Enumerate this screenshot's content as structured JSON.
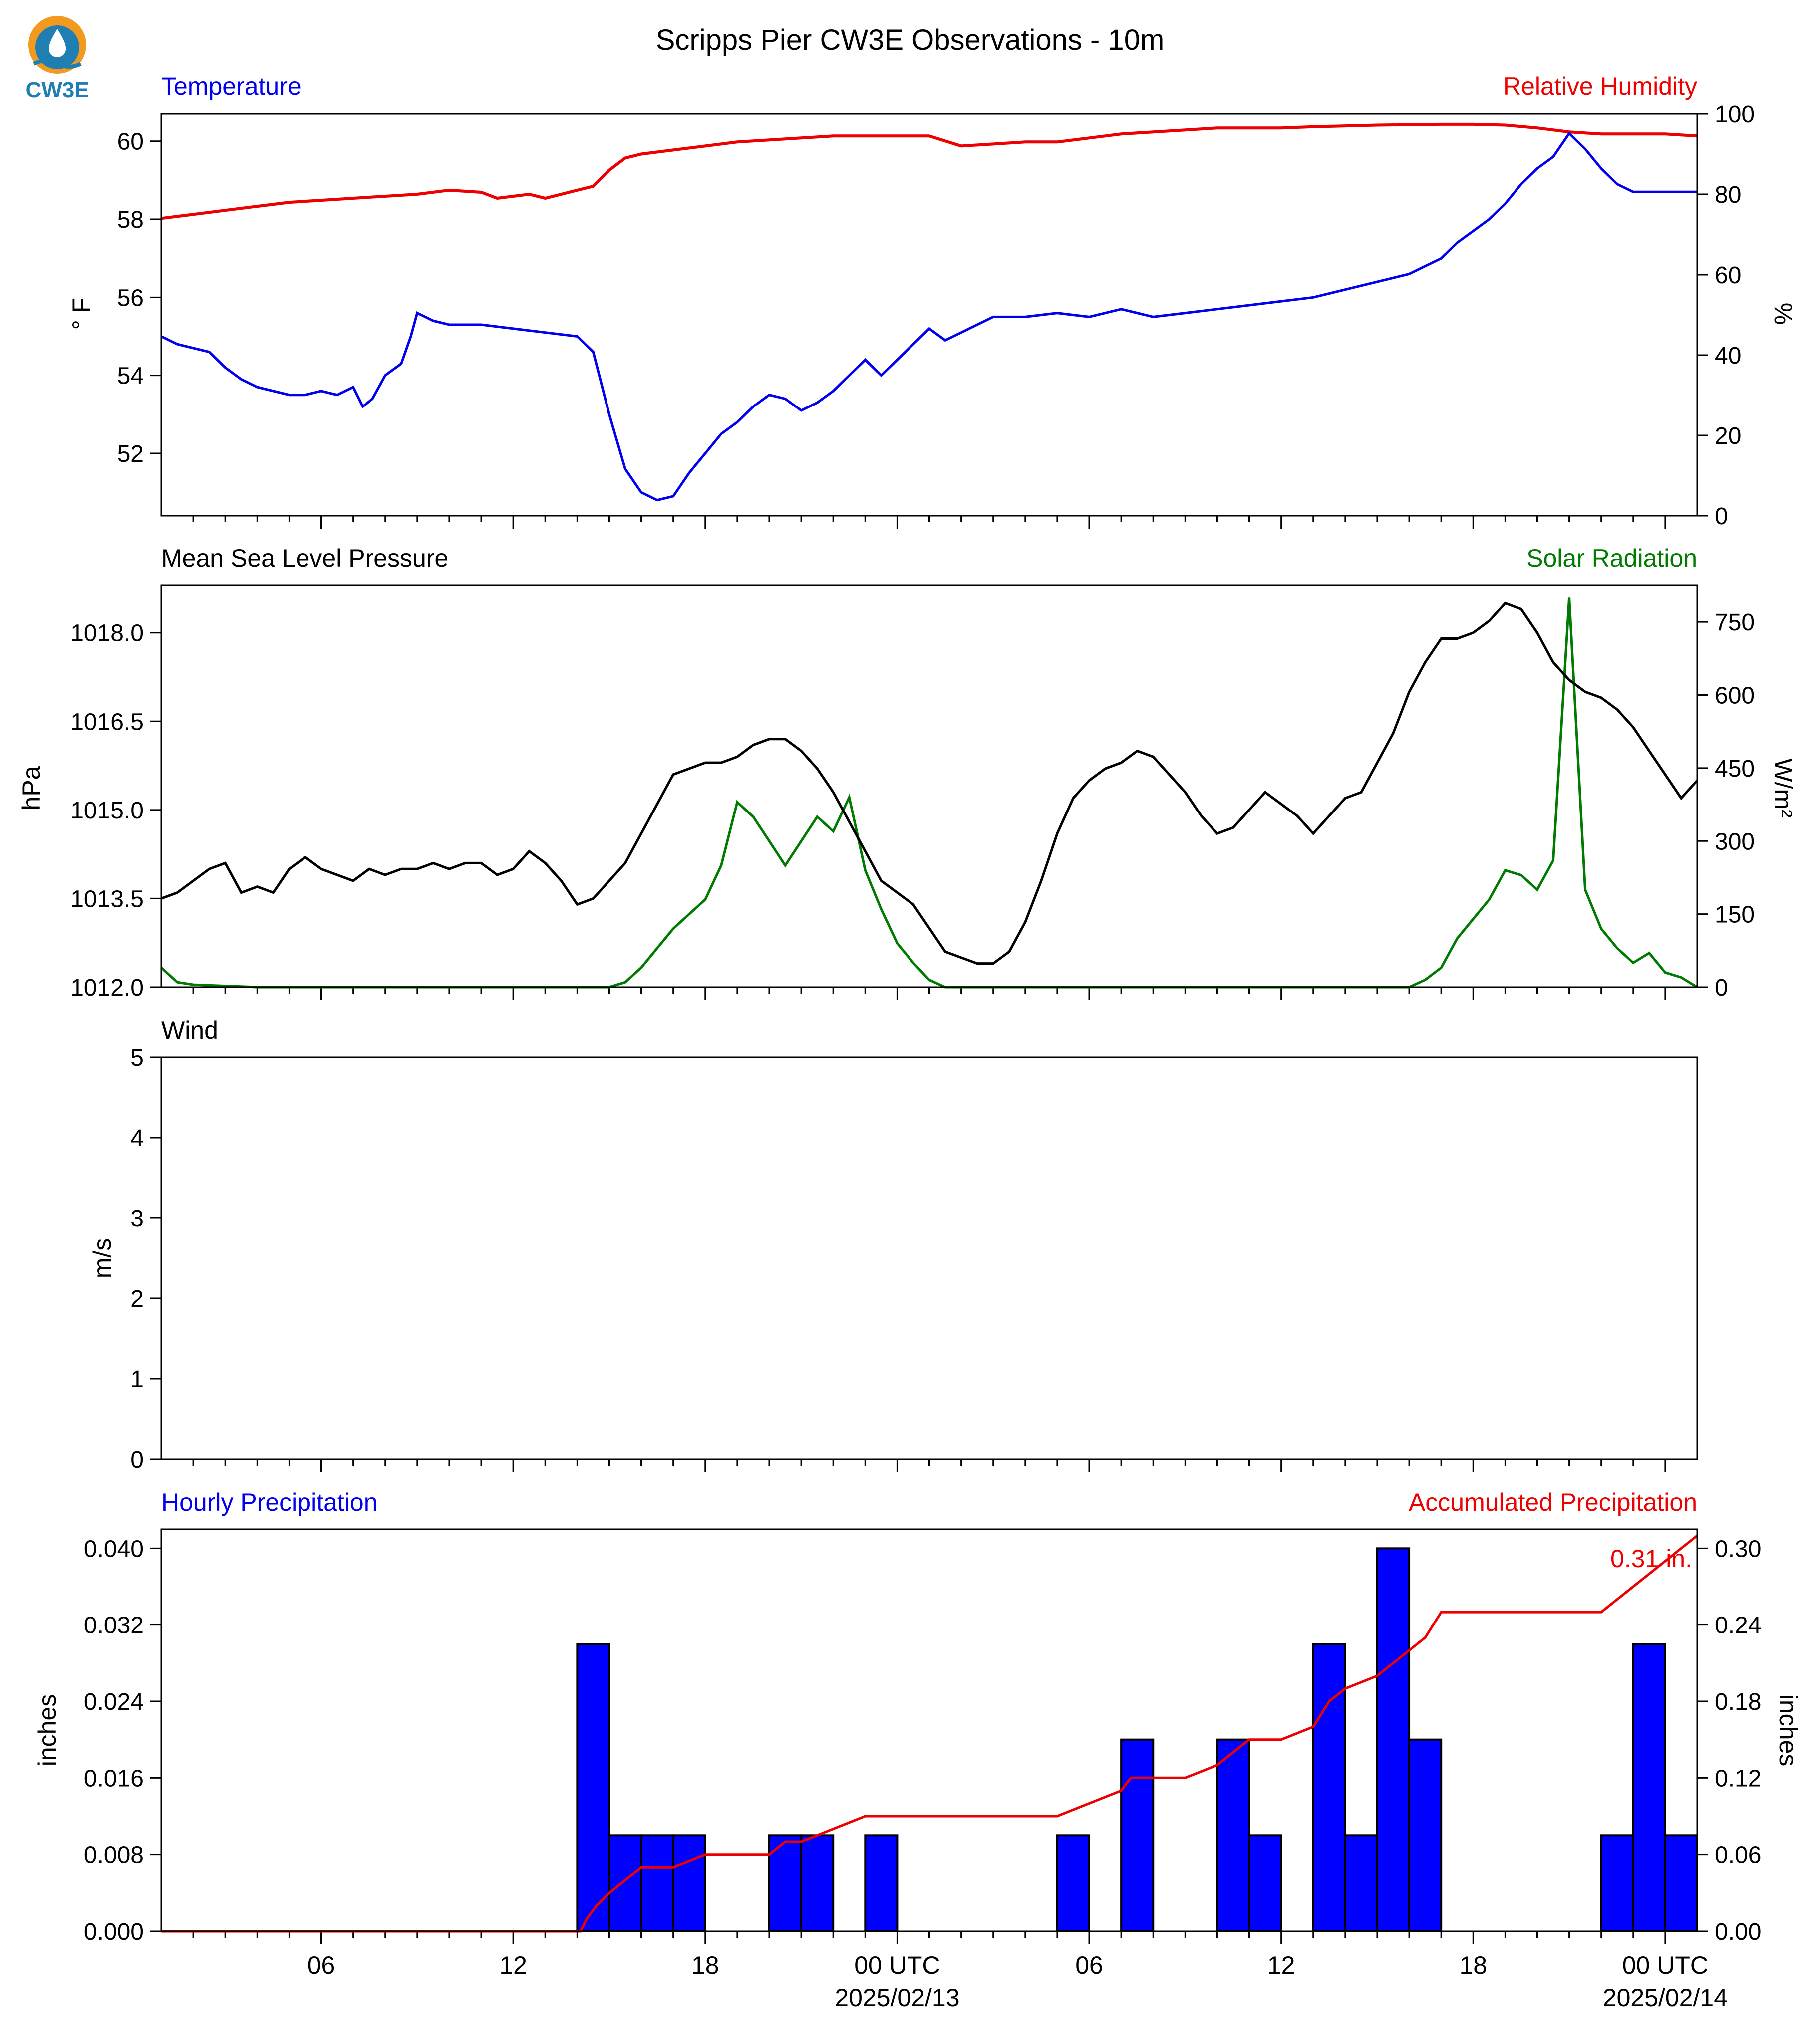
{
  "title": "Scripps Pier CW3E Observations - 10m",
  "logo_text": "CW3E",
  "time_axis": {
    "tick_labels": [
      "06",
      "12",
      "18",
      "00 UTC",
      "06",
      "12",
      "18",
      "00 UTC"
    ],
    "tick_hours": [
      6,
      12,
      18,
      24,
      30,
      36,
      42,
      48
    ],
    "date_labels": [
      "2025/02/13",
      "2025/02/14"
    ],
    "date_hours": [
      24,
      48
    ],
    "range_hours": [
      1,
      49
    ]
  },
  "chart_data": [
    {
      "type": "line",
      "title_left": "Temperature",
      "title_right": "Relative Humidity",
      "ylabel_left": "° F",
      "ylabel_right": "%",
      "ylim_left": [
        50.4,
        60.7
      ],
      "ylim_right": [
        0,
        100
      ],
      "yticks_left": [
        52,
        54,
        56,
        58,
        60
      ],
      "yticks_right": [
        0,
        20,
        40,
        60,
        80,
        100
      ],
      "colors": {
        "left": "#0000ee",
        "right": "#ee0000"
      },
      "series": [
        {
          "name": "Temperature",
          "axis": "left",
          "x": [
            1,
            1.5,
            2,
            2.5,
            3,
            3.5,
            4,
            4.5,
            5,
            5.5,
            6,
            6.5,
            7,
            7.3,
            7.6,
            8,
            8.5,
            8.8,
            9,
            9.5,
            10,
            11,
            12,
            13,
            14,
            14.5,
            15,
            15.5,
            16,
            16.5,
            17,
            17.5,
            18,
            18.5,
            19,
            19.5,
            20,
            20.5,
            21,
            21.5,
            22,
            22.5,
            23,
            23.5,
            24,
            24.5,
            25,
            25.5,
            26,
            26.5,
            27,
            28,
            29,
            30,
            31,
            32,
            33,
            34,
            35,
            36,
            37,
            38,
            39,
            40,
            40.5,
            41,
            41.5,
            42,
            42.5,
            43,
            43.5,
            44,
            44.5,
            45,
            45.5,
            46,
            46.5,
            47,
            47.5,
            48,
            49
          ],
          "y": [
            55.0,
            54.8,
            54.7,
            54.6,
            54.2,
            53.9,
            53.7,
            53.6,
            53.5,
            53.5,
            53.6,
            53.5,
            53.7,
            53.2,
            53.4,
            54.0,
            54.3,
            55.0,
            55.6,
            55.4,
            55.3,
            55.3,
            55.2,
            55.1,
            55.0,
            54.6,
            53.0,
            51.6,
            51.0,
            50.8,
            50.9,
            51.5,
            52.0,
            52.5,
            52.8,
            53.2,
            53.5,
            53.4,
            53.1,
            53.3,
            53.6,
            54.0,
            54.4,
            54.0,
            54.4,
            54.8,
            55.2,
            54.9,
            55.1,
            55.3,
            55.5,
            55.5,
            55.6,
            55.5,
            55.7,
            55.5,
            55.6,
            55.7,
            55.8,
            55.9,
            56.0,
            56.2,
            56.4,
            56.6,
            56.8,
            57.0,
            57.4,
            57.7,
            58.0,
            58.4,
            58.9,
            59.3,
            59.6,
            60.2,
            59.8,
            59.3,
            58.9,
            58.7,
            58.7,
            58.7,
            58.7
          ]
        },
        {
          "name": "Relative Humidity",
          "axis": "right",
          "x": [
            1,
            2,
            3,
            4,
            5,
            6,
            7,
            8,
            9,
            10,
            11,
            11.5,
            12,
            12.5,
            13,
            13.5,
            14,
            14.5,
            15,
            15.5,
            16,
            17,
            18,
            19,
            20,
            21,
            22,
            23,
            24,
            25,
            26,
            27,
            28,
            29,
            30,
            31,
            32,
            33,
            34,
            35,
            36,
            37,
            38,
            39,
            40,
            41,
            42,
            43,
            44,
            45,
            46,
            47,
            48,
            49
          ],
          "y": [
            74,
            75,
            76,
            77,
            78,
            78.5,
            79,
            79.5,
            80,
            81,
            80.5,
            79,
            79.5,
            80,
            79,
            80,
            81,
            82,
            86,
            89,
            90,
            91,
            92,
            93,
            93.5,
            94,
            94.5,
            94.5,
            94.5,
            94.5,
            92,
            92.5,
            93,
            93,
            94,
            95,
            95.5,
            96,
            96.5,
            96.5,
            96.5,
            96.8,
            97,
            97.2,
            97.3,
            97.4,
            97.4,
            97.2,
            96.5,
            95.5,
            95,
            95,
            95,
            94.5
          ]
        }
      ]
    },
    {
      "type": "line",
      "title_left": "Mean Sea Level Pressure",
      "title_right": "Solar Radiation",
      "ylabel_left": "hPa",
      "ylabel_right": "W/m²",
      "ylim_left": [
        1012.0,
        1018.8
      ],
      "ylim_right": [
        0,
        825
      ],
      "yticks_left": [
        1012.0,
        1013.5,
        1015.0,
        1016.5,
        1018.0
      ],
      "yticks_left_labels": [
        "1012.0",
        "1013.5",
        "1015.0",
        "1016.5",
        "1018.0"
      ],
      "yticks_right": [
        0,
        150,
        300,
        450,
        600,
        750
      ],
      "colors": {
        "left": "#000000",
        "right": "#007a00"
      },
      "series": [
        {
          "name": "Mean Sea Level Pressure",
          "axis": "left",
          "x": [
            1,
            1.5,
            2,
            2.5,
            3,
            3.5,
            4,
            4.5,
            5,
            5.5,
            6,
            6.5,
            7,
            7.5,
            8,
            8.5,
            9,
            9.5,
            10,
            10.5,
            11,
            11.5,
            12,
            12.5,
            13,
            13.5,
            14,
            14.5,
            15,
            15.5,
            16,
            16.5,
            17,
            17.5,
            18,
            18.5,
            19,
            19.5,
            20,
            20.5,
            21,
            21.5,
            22,
            22.5,
            23,
            23.5,
            24,
            24.5,
            25,
            25.5,
            26,
            26.5,
            27,
            27.5,
            28,
            28.5,
            29,
            29.5,
            30,
            30.5,
            31,
            31.5,
            32,
            32.5,
            33,
            33.5,
            34,
            34.5,
            35,
            35.5,
            36,
            36.5,
            37,
            37.5,
            38,
            38.5,
            39,
            39.5,
            40,
            40.5,
            41,
            41.5,
            42,
            42.5,
            43,
            43.5,
            44,
            44.5,
            45,
            45.5,
            46,
            46.5,
            47,
            47.5,
            48,
            48.5,
            49
          ],
          "y": [
            1013.5,
            1013.6,
            1013.8,
            1014.0,
            1014.1,
            1013.6,
            1013.7,
            1013.6,
            1014.0,
            1014.2,
            1014.0,
            1013.9,
            1013.8,
            1014.0,
            1013.9,
            1014.0,
            1014.0,
            1014.1,
            1014.0,
            1014.1,
            1014.1,
            1013.9,
            1014.0,
            1014.3,
            1014.1,
            1013.8,
            1013.4,
            1013.5,
            1013.8,
            1014.1,
            1014.6,
            1015.1,
            1015.6,
            1015.7,
            1015.8,
            1015.8,
            1015.9,
            1016.1,
            1016.2,
            1016.2,
            1016.0,
            1015.7,
            1015.3,
            1014.8,
            1014.3,
            1013.8,
            1013.6,
            1013.4,
            1013.0,
            1012.6,
            1012.5,
            1012.4,
            1012.4,
            1012.6,
            1013.1,
            1013.8,
            1014.6,
            1015.2,
            1015.5,
            1015.7,
            1015.8,
            1016.0,
            1015.9,
            1015.6,
            1015.3,
            1014.9,
            1014.6,
            1014.7,
            1015.0,
            1015.3,
            1015.1,
            1014.9,
            1014.6,
            1014.9,
            1015.2,
            1015.3,
            1015.8,
            1016.3,
            1017.0,
            1017.5,
            1017.9,
            1017.9,
            1018.0,
            1018.2,
            1018.5,
            1018.4,
            1018.0,
            1017.5,
            1017.2,
            1017.0,
            1016.9,
            1016.7,
            1016.4,
            1016.0,
            1015.6,
            1015.2,
            1015.5
          ]
        },
        {
          "name": "Solar Radiation",
          "axis": "right",
          "x": [
            1,
            1.5,
            2,
            4,
            8,
            12,
            14,
            15,
            15.5,
            16,
            16.5,
            17,
            17.5,
            18,
            18.5,
            19,
            19.5,
            20,
            20.5,
            21,
            21.5,
            22,
            22.5,
            23,
            23.5,
            24,
            24.5,
            25,
            25.5,
            26,
            30,
            34,
            38,
            40,
            40.5,
            41,
            41.5,
            42,
            42.5,
            43,
            43.5,
            44,
            44.5,
            45,
            45.5,
            46,
            46.5,
            47,
            47.5,
            48,
            48.5,
            49
          ],
          "y": [
            40,
            10,
            5,
            0,
            0,
            0,
            0,
            0,
            10,
            40,
            80,
            120,
            150,
            180,
            250,
            380,
            350,
            300,
            250,
            300,
            350,
            320,
            390,
            240,
            160,
            90,
            50,
            15,
            0,
            0,
            0,
            0,
            0,
            0,
            15,
            40,
            100,
            140,
            180,
            240,
            230,
            200,
            260,
            800,
            200,
            120,
            80,
            50,
            70,
            30,
            20,
            0
          ]
        }
      ]
    },
    {
      "type": "line",
      "title_left": "Wind",
      "ylabel_left": "m/s",
      "ylim_left": [
        0,
        5
      ],
      "yticks_left": [
        0,
        1,
        2,
        3,
        4,
        5
      ],
      "series": []
    },
    {
      "type": "bar",
      "title_left": "Hourly Precipitation",
      "title_right": "Accumulated Precipitation",
      "ylabel_left": "inches",
      "ylabel_right": "inches",
      "ylim_left": [
        0,
        0.042
      ],
      "ylim_right": [
        0,
        0.315
      ],
      "yticks_left": [
        0.0,
        0.008,
        0.016,
        0.024,
        0.032,
        0.04
      ],
      "yticks_left_labels": [
        "0.000",
        "0.008",
        "0.016",
        "0.024",
        "0.032",
        "0.040"
      ],
      "yticks_right": [
        0,
        0.06,
        0.12,
        0.18,
        0.24,
        0.3
      ],
      "yticks_right_labels": [
        "0.00",
        "0.06",
        "0.12",
        "0.18",
        "0.24",
        "0.30"
      ],
      "colors": {
        "bars": "#0000ff",
        "line": "#ee0000"
      },
      "annotation": "0.31 in.",
      "series": [
        {
          "name": "Hourly Precipitation",
          "axis": "left",
          "hours": [
            14,
            15,
            16,
            17,
            20,
            21,
            23,
            29,
            31,
            34,
            35,
            37,
            38,
            39,
            40,
            46,
            47,
            48
          ],
          "values": [
            0.03,
            0.01,
            0.01,
            0.01,
            0.01,
            0.01,
            0.01,
            0.01,
            0.02,
            0.02,
            0.01,
            0.03,
            0.01,
            0.04,
            0.02,
            0.01,
            0.03,
            0.01
          ]
        },
        {
          "name": "Accumulated Precipitation",
          "axis": "right",
          "x": [
            1,
            14.1,
            14.3,
            14.6,
            15,
            15.5,
            16,
            17,
            18,
            20,
            20.5,
            21,
            22,
            23,
            29,
            30,
            31,
            31.3,
            31.5,
            33,
            34,
            34.5,
            35,
            36,
            37,
            37.5,
            38,
            39,
            39.5,
            40,
            40.5,
            41,
            46,
            46.5,
            47,
            47.5,
            48,
            48.5,
            49
          ],
          "y": [
            0,
            0,
            0.01,
            0.02,
            0.03,
            0.04,
            0.05,
            0.05,
            0.06,
            0.06,
            0.07,
            0.07,
            0.08,
            0.09,
            0.09,
            0.1,
            0.11,
            0.12,
            0.12,
            0.12,
            0.13,
            0.14,
            0.15,
            0.15,
            0.16,
            0.18,
            0.19,
            0.2,
            0.21,
            0.22,
            0.23,
            0.25,
            0.25,
            0.26,
            0.27,
            0.28,
            0.29,
            0.3,
            0.31
          ]
        }
      ]
    }
  ]
}
